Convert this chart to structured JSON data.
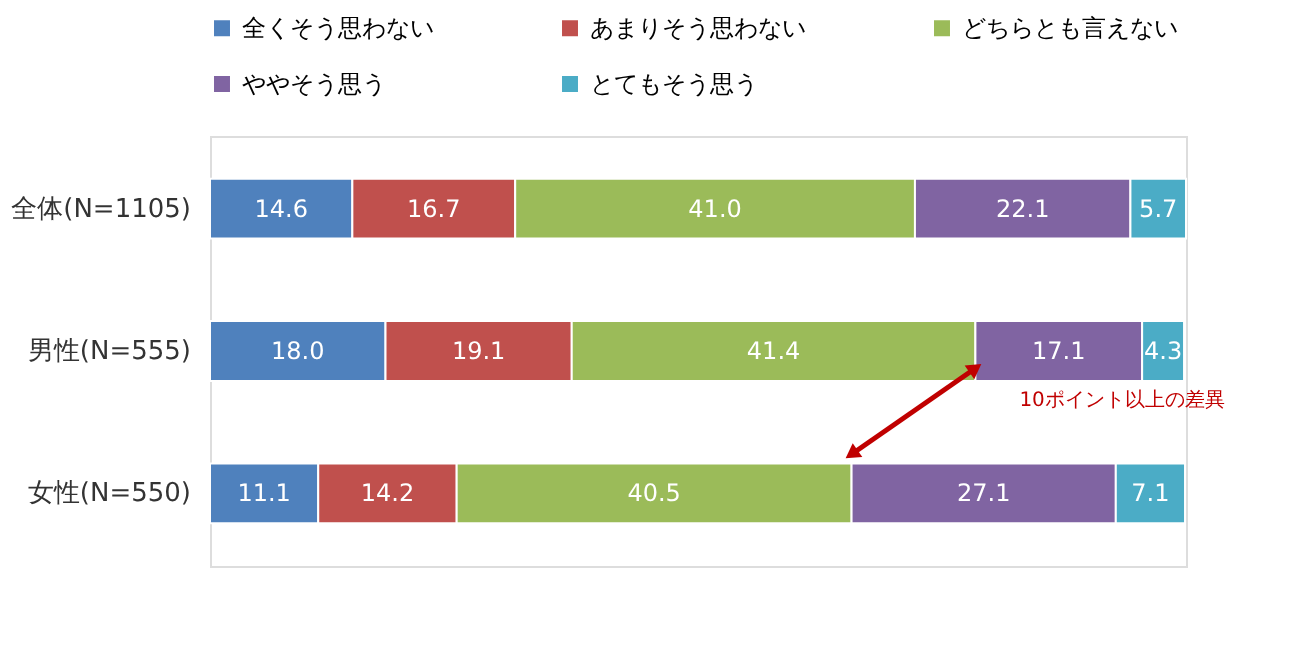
{
  "chart_data": {
    "type": "bar",
    "orientation": "horizontal",
    "stacked": true,
    "legend": "top",
    "categories": [
      "全体(N=1105)",
      "男性(N=555)",
      "女性(N=550)"
    ],
    "series": [
      {
        "name": "全くそう思わない",
        "color": "#4f81bd",
        "values": [
          14.6,
          18.0,
          11.1
        ],
        "value_labels": [
          "14.6",
          "18.0",
          "11.1"
        ]
      },
      {
        "name": "あまりそう思わない",
        "color": "#c0504d",
        "values": [
          16.7,
          19.1,
          14.2
        ],
        "value_labels": [
          "16.7",
          "19.1",
          "14.2"
        ]
      },
      {
        "name": "どちらとも言えない",
        "color": "#9bbb59",
        "values": [
          41.0,
          41.4,
          40.5
        ],
        "value_labels": [
          "41.0",
          "41.4",
          "40.5"
        ]
      },
      {
        "name": "ややそう思う",
        "color": "#8064a2",
        "values": [
          22.1,
          17.1,
          27.1
        ],
        "value_labels": [
          "22.1",
          "17.1",
          "27.1"
        ]
      },
      {
        "name": "とてもそう思う",
        "color": "#4bacc6",
        "values": [
          5.7,
          4.3,
          7.1
        ],
        "value_labels": [
          "5.7",
          "4.3",
          "7.1"
        ]
      }
    ],
    "annotations": [
      "10ポイント以上の差異"
    ]
  }
}
